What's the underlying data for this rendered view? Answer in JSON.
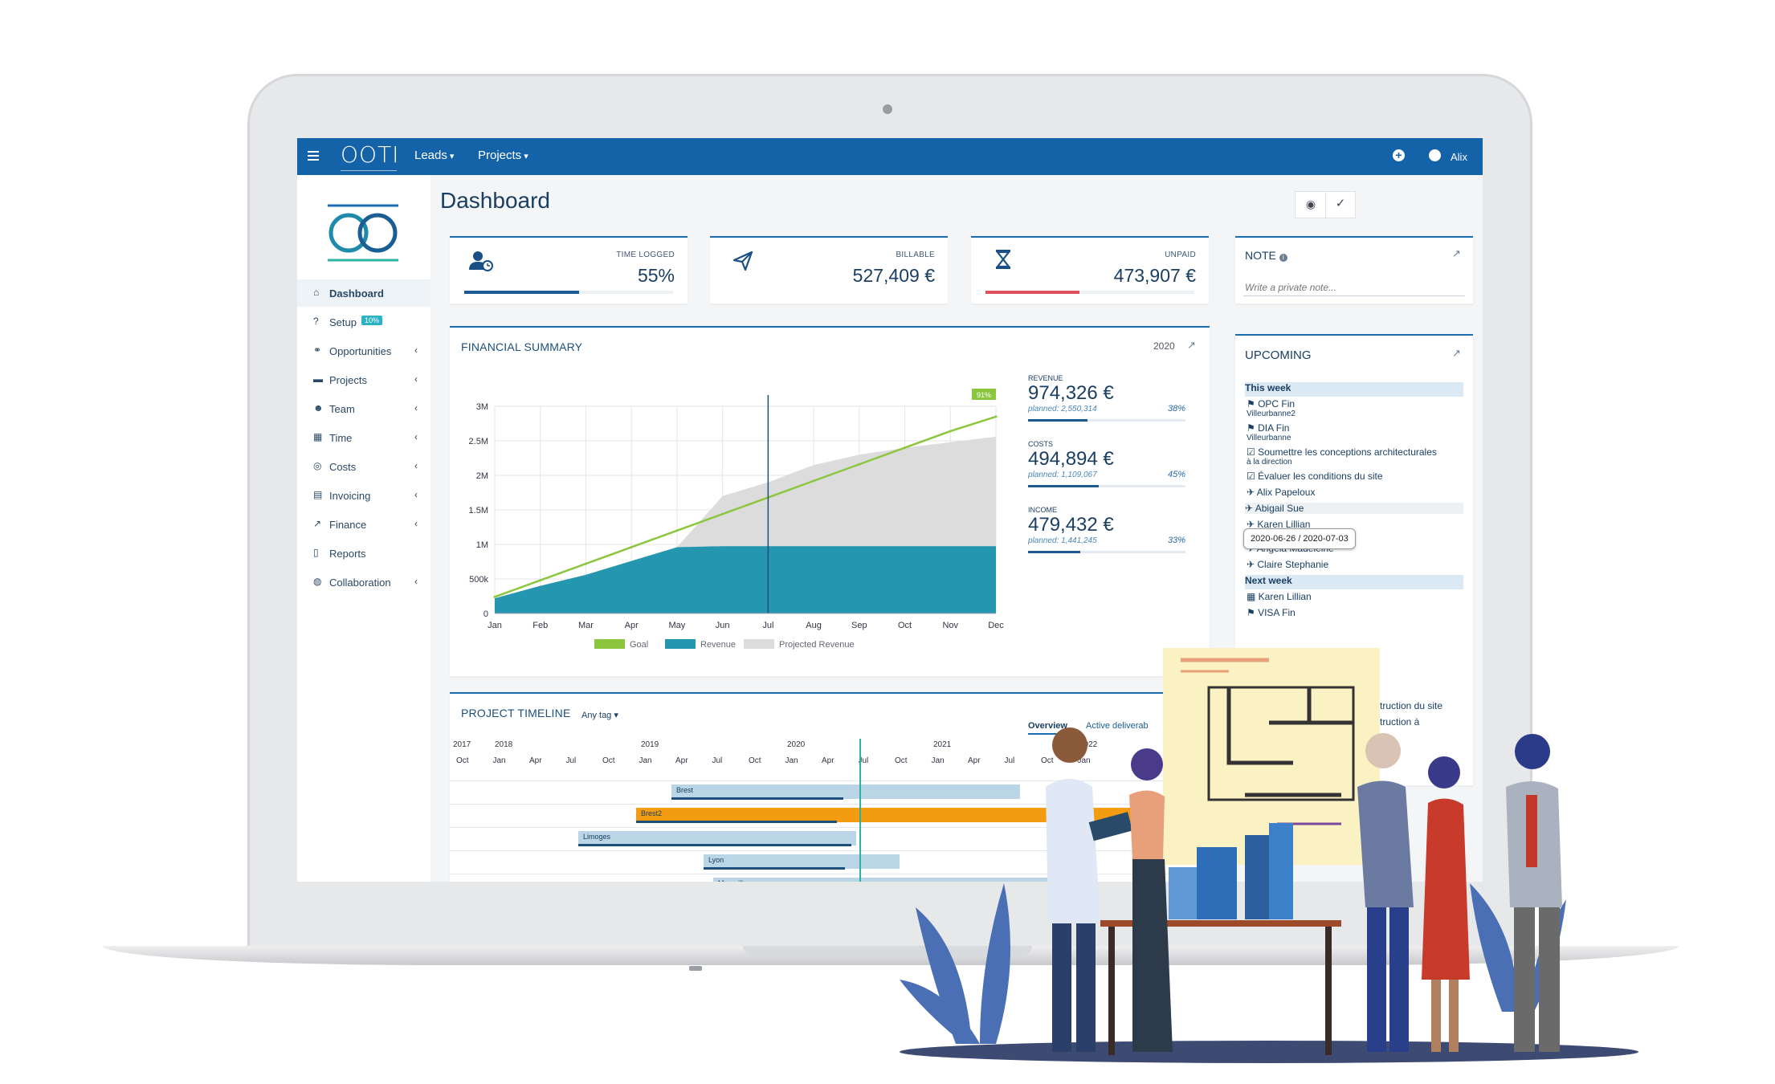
{
  "app": {
    "logo_text": "OOTI",
    "nav": [
      {
        "label": "Leads"
      },
      {
        "label": "Projects"
      }
    ],
    "user": "Alix",
    "page_title": "Dashboard"
  },
  "sidebar": {
    "items": [
      {
        "label": "Dashboard",
        "icon": "home-icon",
        "active": true,
        "chevron": false
      },
      {
        "label": "Setup",
        "icon": "question-circle-icon",
        "badge": "10%",
        "chevron": false
      },
      {
        "label": "Opportunities",
        "icon": "handshake-icon",
        "chevron": true
      },
      {
        "label": "Projects",
        "icon": "folder-icon",
        "chevron": true
      },
      {
        "label": "Team",
        "icon": "users-icon",
        "chevron": true
      },
      {
        "label": "Time",
        "icon": "calendar-icon",
        "chevron": true
      },
      {
        "label": "Costs",
        "icon": "coins-icon",
        "chevron": true
      },
      {
        "label": "Invoicing",
        "icon": "invoice-icon",
        "chevron": true
      },
      {
        "label": "Finance",
        "icon": "line-chart-icon",
        "chevron": true
      },
      {
        "label": "Reports",
        "icon": "file-icon",
        "chevron": false
      },
      {
        "label": "Collaboration",
        "icon": "comments-icon",
        "chevron": true
      }
    ]
  },
  "kpis": [
    {
      "label": "TIME LOGGED",
      "value": "55%",
      "icon": "user-clock-icon",
      "bar_color": "#1c5a94",
      "fill": 0.55
    },
    {
      "label": "BILLABLE",
      "value": "527,409 €",
      "icon": "paper-plane-icon",
      "bar_color": "#1c5a94",
      "fill": 0
    },
    {
      "label": "UNPAID",
      "value": "473,907 €",
      "icon": "hourglass-icon",
      "bar_color": "#e0505f",
      "fill": 0.45
    }
  ],
  "note": {
    "title": "NOTE",
    "placeholder": "Write a private note..."
  },
  "financial_summary": {
    "title": "FINANCIAL SUMMARY",
    "year": "2020",
    "goal_badge": "91%",
    "metrics": [
      {
        "label": "REVENUE",
        "value": "974,326 €",
        "planned": "planned: 2,550,314",
        "pct": "38%",
        "fill": 0.38
      },
      {
        "label": "COSTS",
        "value": "494,894 €",
        "planned": "planned: 1,109,067",
        "pct": "45%",
        "fill": 0.45
      },
      {
        "label": "INCOME",
        "value": "479,432 €",
        "planned": "planned: 1,441,245",
        "pct": "33%",
        "fill": 0.33
      }
    ]
  },
  "chart_data": {
    "type": "area",
    "categories": [
      "Jan",
      "Feb",
      "Mar",
      "Apr",
      "May",
      "Jun",
      "Jul",
      "Aug",
      "Sep",
      "Oct",
      "Nov",
      "Dec"
    ],
    "y_ticks": [
      "0",
      "500k",
      "1M",
      "1.5M",
      "2M",
      "2.5M",
      "3M"
    ],
    "ylim": [
      0,
      3000000
    ],
    "grid": true,
    "legend_position": "bottom",
    "series": [
      {
        "name": "Goal",
        "color": "#8cc63f",
        "kind": "line",
        "values": [
          240000,
          480000,
          720000,
          960000,
          1200000,
          1440000,
          1680000,
          1920000,
          2160000,
          2400000,
          2640000,
          2850000
        ]
      },
      {
        "name": "Revenue",
        "color": "#2596b0",
        "kind": "area",
        "values": [
          220000,
          400000,
          560000,
          760000,
          960000,
          974326,
          974326,
          974326,
          974326,
          974326,
          974326,
          974326
        ]
      },
      {
        "name": "Projected Revenue",
        "color": "#dcdcdc",
        "kind": "area",
        "values": [
          220000,
          400000,
          560000,
          760000,
          960000,
          1700000,
          1900000,
          2150000,
          2300000,
          2400000,
          2480000,
          2560000
        ]
      }
    ],
    "current_month_marker": "Jul"
  },
  "upcoming": {
    "title": "UPCOMING",
    "this_week_label": "This week",
    "next_week_label": "Next week",
    "this_week": [
      {
        "icon": "flag-icon",
        "text": "OPC Fin",
        "sub": "Villeurbanne2"
      },
      {
        "icon": "flag-icon",
        "text": "DIA Fin",
        "sub": "Villeurbanne"
      },
      {
        "icon": "checkbox-icon",
        "text": "Soumettre les conceptions architecturales",
        "sub": "à la direction"
      },
      {
        "icon": "checkbox-icon",
        "text": "Évaluer les conditions du site"
      },
      {
        "icon": "plane-icon",
        "text": "Alix Papeloux"
      },
      {
        "icon": "plane-icon",
        "text": "Abigail Sue"
      },
      {
        "icon": "plane-icon",
        "text": "Karen Lillian"
      },
      {
        "icon": "plane-icon",
        "text": "Angela Madeleine"
      },
      {
        "icon": "plane-icon",
        "text": "Claire Stephanie"
      }
    ],
    "tooltip": "2020-06-26 / 2020-07-03",
    "next_week": [
      {
        "icon": "calendar-icon",
        "text": "Karen Lillian"
      },
      {
        "icon": "flag-icon",
        "text": "VISA Fin"
      }
    ],
    "partial_rows": [
      "struction du site",
      "struction à"
    ]
  },
  "timeline": {
    "title": "PROJECT TIMELINE",
    "tag_filter": "Any tag",
    "tabs": [
      {
        "label": "Overview",
        "active": true
      },
      {
        "label": "Active deliverab"
      }
    ],
    "years": [
      "2017",
      "2018",
      "2019",
      "2020",
      "2021",
      "2022"
    ],
    "months": [
      "Oct",
      "Jan",
      "Apr",
      "Jul",
      "Oct",
      "Jan",
      "Apr",
      "Jul",
      "Oct",
      "Jan",
      "Apr",
      "Jul",
      "Oct",
      "Jan",
      "Apr",
      "Jul",
      "Oct",
      "Jan"
    ],
    "bars": [
      {
        "label": "Brest",
        "color": "#b9d5e6"
      },
      {
        "label": "Brest2",
        "color": "#f39c12"
      },
      {
        "label": "Limoges",
        "color": "#b9d5e6"
      },
      {
        "label": "Lyon",
        "color": "#b9d5e6"
      },
      {
        "label": "Marseille",
        "color": "#b9d5e6"
      }
    ]
  }
}
